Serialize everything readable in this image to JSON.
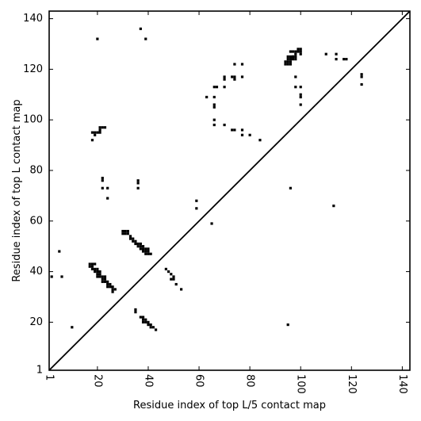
{
  "chart_data": {
    "type": "scatter",
    "title": "",
    "xlabel": "Residue index of top L/5 contact map",
    "ylabel": "Residue index of top L contact map",
    "xlim": [
      1,
      143
    ],
    "ylim": [
      1,
      143
    ],
    "xticks": [
      1,
      20,
      40,
      60,
      80,
      100,
      120,
      140
    ],
    "yticks": [
      1,
      20,
      40,
      60,
      80,
      100,
      120,
      140
    ],
    "xtick_labels": [
      "1",
      "20",
      "40",
      "60",
      "80",
      "100",
      "120",
      "140"
    ],
    "ytick_labels": [
      "1",
      "20",
      "40",
      "60",
      "80",
      "100",
      "120",
      "140"
    ],
    "x_tick_label_rotation": -90,
    "grid": false,
    "diagonal_line": true,
    "marker_color": "#000000",
    "points": [
      [
        20,
        132
      ],
      [
        37,
        136
      ],
      [
        39,
        132
      ],
      [
        74,
        122
      ],
      [
        77,
        122
      ],
      [
        96,
        127
      ],
      [
        97,
        127
      ],
      [
        98,
        127
      ],
      [
        99,
        127
      ],
      [
        99,
        128
      ],
      [
        100,
        128
      ],
      [
        100,
        127
      ],
      [
        100,
        126
      ],
      [
        98,
        126
      ],
      [
        98,
        125
      ],
      [
        97,
        125
      ],
      [
        96,
        125
      ],
      [
        95,
        125
      ],
      [
        97,
        124
      ],
      [
        96,
        124
      ],
      [
        95,
        124
      ],
      [
        98,
        124
      ],
      [
        94,
        123
      ],
      [
        95,
        123
      ],
      [
        96,
        123
      ],
      [
        94,
        122
      ],
      [
        95,
        122
      ],
      [
        96,
        122
      ],
      [
        97,
        125
      ],
      [
        110,
        126
      ],
      [
        114,
        126
      ],
      [
        114,
        124
      ],
      [
        117,
        124
      ],
      [
        118,
        124
      ],
      [
        124,
        118
      ],
      [
        124,
        117
      ],
      [
        124,
        114
      ],
      [
        70,
        117
      ],
      [
        70,
        116
      ],
      [
        73,
        117
      ],
      [
        74,
        117
      ],
      [
        74,
        116
      ],
      [
        77,
        117
      ],
      [
        66,
        113
      ],
      [
        67,
        113
      ],
      [
        70,
        113
      ],
      [
        98,
        117
      ],
      [
        98,
        113
      ],
      [
        100,
        113
      ],
      [
        63,
        109
      ],
      [
        66,
        109
      ],
      [
        66,
        106
      ],
      [
        66,
        105
      ],
      [
        100,
        110
      ],
      [
        100,
        109
      ],
      [
        100,
        106
      ],
      [
        66,
        100
      ],
      [
        66,
        98
      ],
      [
        70,
        98
      ],
      [
        73,
        96
      ],
      [
        74,
        96
      ],
      [
        77,
        96
      ],
      [
        77,
        94
      ],
      [
        80,
        94
      ],
      [
        84,
        92
      ],
      [
        18,
        95
      ],
      [
        19,
        95
      ],
      [
        20,
        95
      ],
      [
        21,
        95
      ],
      [
        21,
        96
      ],
      [
        21,
        97
      ],
      [
        22,
        97
      ],
      [
        23,
        97
      ],
      [
        19,
        94
      ],
      [
        18,
        92
      ],
      [
        22,
        77
      ],
      [
        22,
        76
      ],
      [
        22,
        73
      ],
      [
        24,
        73
      ],
      [
        24,
        69
      ],
      [
        36,
        76
      ],
      [
        36,
        75
      ],
      [
        36,
        73
      ],
      [
        96,
        73
      ],
      [
        59,
        68
      ],
      [
        59,
        65
      ],
      [
        65,
        59
      ],
      [
        113,
        66
      ],
      [
        30,
        56
      ],
      [
        31,
        56
      ],
      [
        32,
        56
      ],
      [
        30,
        55
      ],
      [
        31,
        55
      ],
      [
        32,
        55
      ],
      [
        33,
        54
      ],
      [
        33,
        53
      ],
      [
        34,
        53
      ],
      [
        34,
        52
      ],
      [
        35,
        52
      ],
      [
        35,
        51
      ],
      [
        36,
        51
      ],
      [
        37,
        51
      ],
      [
        36,
        50
      ],
      [
        37,
        50
      ],
      [
        38,
        50
      ],
      [
        37,
        49
      ],
      [
        38,
        49
      ],
      [
        39,
        49
      ],
      [
        38,
        48
      ],
      [
        39,
        48
      ],
      [
        40,
        48
      ],
      [
        39,
        47
      ],
      [
        40,
        47
      ],
      [
        41,
        47
      ],
      [
        40,
        49
      ],
      [
        17,
        43
      ],
      [
        18,
        43
      ],
      [
        19,
        43
      ],
      [
        17,
        42
      ],
      [
        18,
        42
      ],
      [
        18,
        41
      ],
      [
        19,
        41
      ],
      [
        20,
        41
      ],
      [
        19,
        40
      ],
      [
        20,
        40
      ],
      [
        21,
        40
      ],
      [
        20,
        39
      ],
      [
        21,
        39
      ],
      [
        20,
        38
      ],
      [
        21,
        38
      ],
      [
        22,
        38
      ],
      [
        23,
        38
      ],
      [
        22,
        37
      ],
      [
        23,
        37
      ],
      [
        22,
        36
      ],
      [
        23,
        36
      ],
      [
        24,
        36
      ],
      [
        24,
        35
      ],
      [
        25,
        35
      ],
      [
        24,
        34
      ],
      [
        25,
        34
      ],
      [
        26,
        34
      ],
      [
        26,
        33
      ],
      [
        27,
        33
      ],
      [
        26,
        32
      ],
      [
        5,
        48
      ],
      [
        2,
        38
      ],
      [
        6,
        38
      ],
      [
        47,
        41
      ],
      [
        48,
        40
      ],
      [
        49,
        39
      ],
      [
        50,
        38
      ],
      [
        49,
        37
      ],
      [
        50,
        37
      ],
      [
        51,
        35
      ],
      [
        53,
        33
      ],
      [
        35,
        25
      ],
      [
        35,
        24
      ],
      [
        37,
        22
      ],
      [
        38,
        22
      ],
      [
        38,
        21
      ],
      [
        39,
        21
      ],
      [
        38,
        20
      ],
      [
        39,
        20
      ],
      [
        40,
        20
      ],
      [
        40,
        19
      ],
      [
        41,
        19
      ],
      [
        41,
        18
      ],
      [
        42,
        18
      ],
      [
        43,
        17
      ],
      [
        10,
        18
      ],
      [
        95,
        19
      ]
    ]
  }
}
